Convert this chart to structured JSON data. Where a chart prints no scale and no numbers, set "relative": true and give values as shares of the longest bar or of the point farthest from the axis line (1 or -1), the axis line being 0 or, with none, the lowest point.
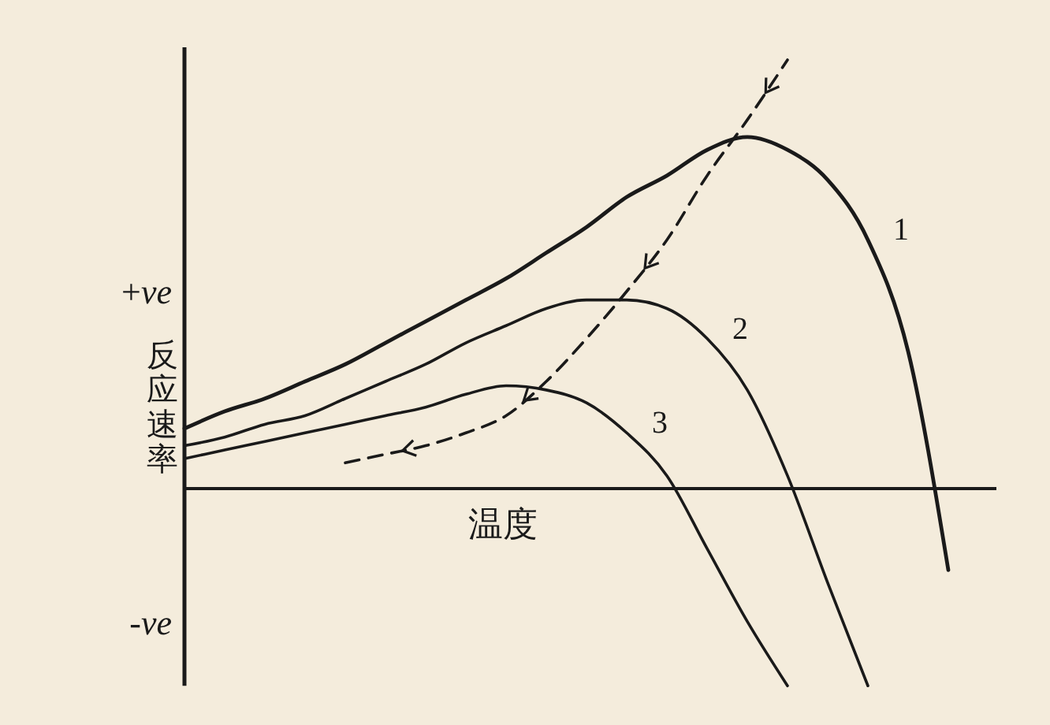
{
  "chart_data": {
    "type": "line",
    "relative": true,
    "xlabel": "温度",
    "ylabel": "反应速率",
    "annotations": [
      "+ve",
      "-ve"
    ],
    "categories": [
      null,
      null,
      null,
      null,
      null,
      null,
      null,
      null,
      null,
      null,
      null,
      null,
      null,
      null,
      null,
      null,
      null,
      null,
      null,
      null,
      null
    ],
    "series": [
      {
        "name": "1",
        "color": "#1a1a1a",
        "line_style": "solid",
        "values": [
          0.14,
          0.18,
          0.21,
          0.25,
          0.29,
          0.34,
          0.39,
          0.44,
          0.49,
          0.55,
          0.61,
          0.68,
          0.73,
          0.79,
          0.82,
          0.79,
          0.72,
          0.58,
          0.32,
          -0.19,
          null
        ]
      },
      {
        "name": "2",
        "color": "#1a1a1a",
        "line_style": "solid",
        "values": [
          0.1,
          0.12,
          0.15,
          0.17,
          0.21,
          0.25,
          0.29,
          0.34,
          0.38,
          0.42,
          0.44,
          0.44,
          0.42,
          0.35,
          0.23,
          0.03,
          -0.22,
          -0.46,
          null,
          null,
          null
        ]
      },
      {
        "name": "3",
        "color": "#1a1a1a",
        "line_style": "solid",
        "values": [
          0.07,
          0.09,
          0.11,
          0.13,
          0.15,
          0.17,
          0.19,
          0.22,
          0.24,
          0.23,
          0.2,
          0.13,
          0.03,
          -0.14,
          -0.31,
          -0.46,
          null,
          null,
          null,
          null,
          null
        ]
      },
      {
        "color": "#1a1a1a",
        "line_style": "dashed",
        "values": [
          null,
          null,
          null,
          null,
          0.06,
          0.08,
          0.1,
          0.13,
          0.17,
          0.25,
          0.35,
          0.46,
          0.58,
          0.73,
          0.86,
          1.0,
          null,
          null,
          null,
          null,
          null
        ]
      }
    ]
  }
}
